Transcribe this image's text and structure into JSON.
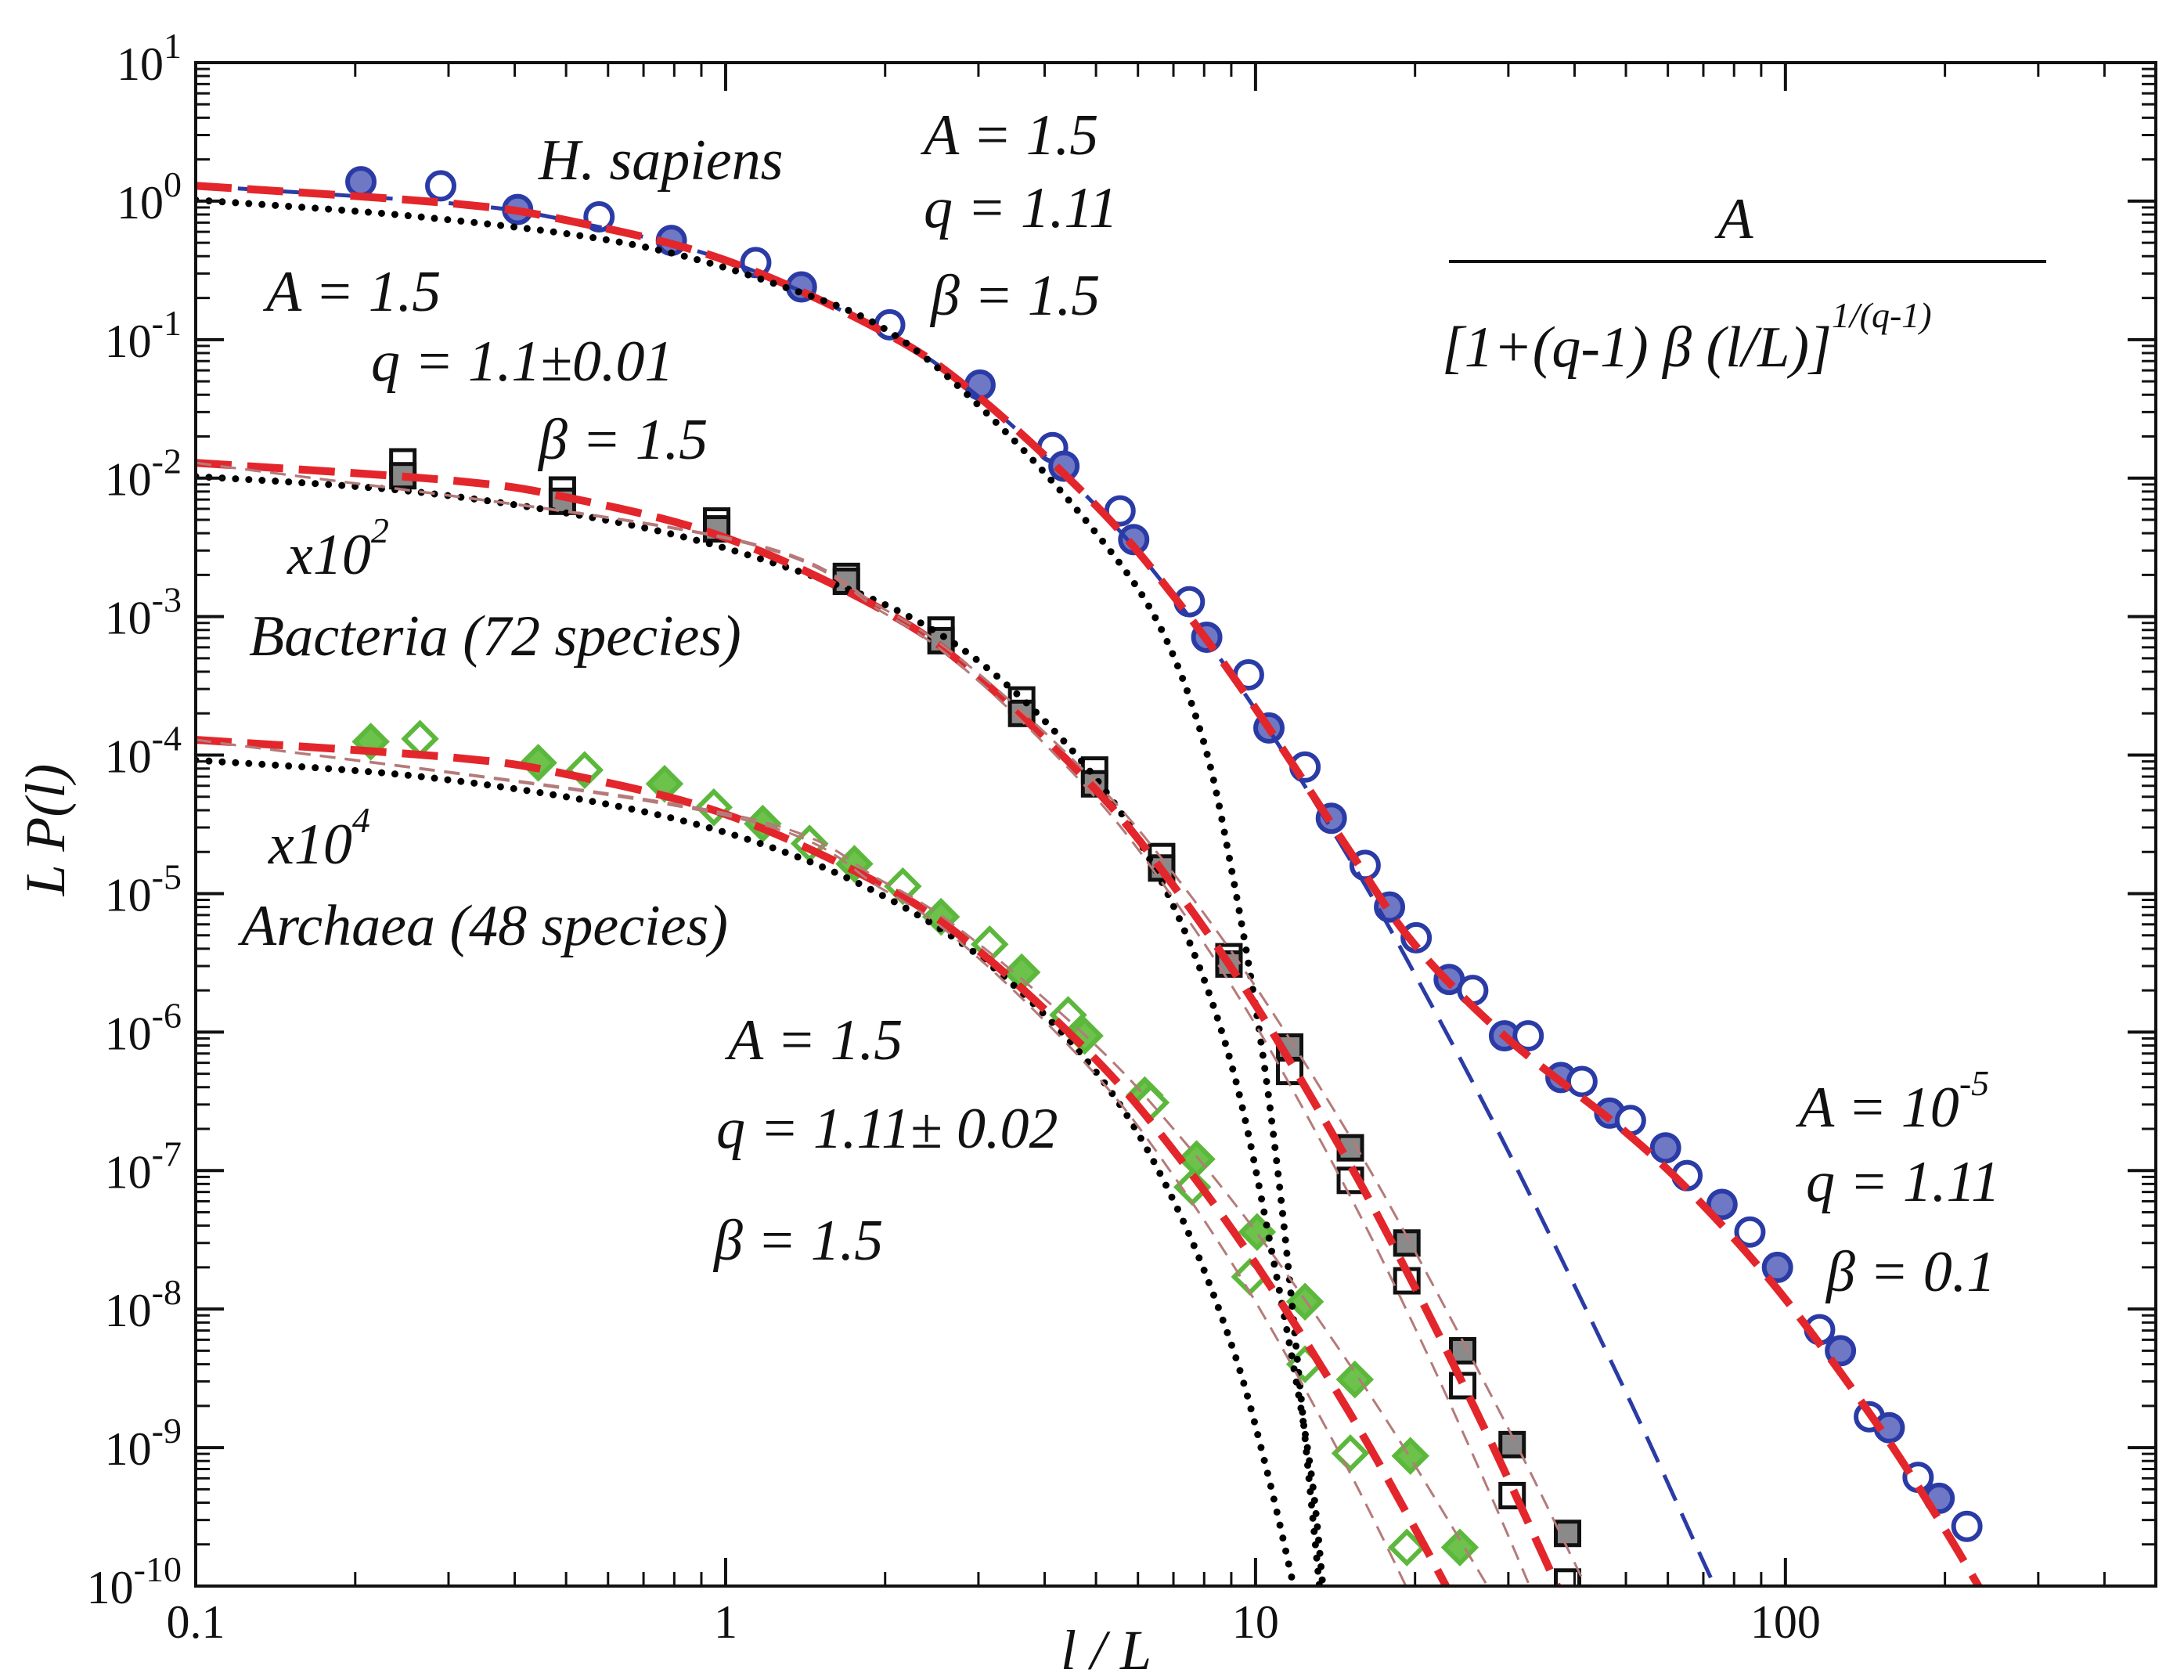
{
  "chart_data": {
    "type": "line",
    "x_label": "l / L",
    "y_label": "L P(l)",
    "xlog": true,
    "ylog": true,
    "xlim": [
      0.1,
      500
    ],
    "ylim": [
      1e-10,
      10
    ],
    "xticks": [
      0.1,
      1,
      10,
      100
    ],
    "yticks": [
      {
        "value": 10,
        "label": "10",
        "exponent": "1"
      },
      {
        "value": 1,
        "label": "10",
        "exponent": "0"
      },
      {
        "value": 0.1,
        "label": "10",
        "exponent": "-1"
      },
      {
        "value": 0.01,
        "label": "10",
        "exponent": "-2"
      },
      {
        "value": 0.001,
        "label": "10",
        "exponent": "-3"
      },
      {
        "value": 0.0001,
        "label": "10",
        "exponent": "-4"
      },
      {
        "value": 1e-05,
        "label": "10",
        "exponent": "-5"
      },
      {
        "value": 1e-06,
        "label": "10",
        "exponent": "-6"
      },
      {
        "value": 1e-07,
        "label": "10",
        "exponent": "-7"
      },
      {
        "value": 1e-08,
        "label": "10",
        "exponent": "-8"
      },
      {
        "value": 1e-09,
        "label": "10",
        "exponent": "-9"
      },
      {
        "value": 1e-10,
        "label": "10",
        "exponent": "-10"
      }
    ],
    "minor_ticks": true,
    "formula": {
      "numerator": "A",
      "denominator": "[1+(q-1) β (l/L)]",
      "exponent": "1/(q-1)"
    },
    "annotations": [
      {
        "text": "A = 1.5"
      },
      {
        "text": "q = 1.11"
      },
      {
        "text": "β = 1.5"
      },
      {
        "text": "A = 1.5"
      },
      {
        "text": "q = 1.1±0.01"
      },
      {
        "text": "β = 1.5"
      },
      {
        "text": "x10",
        "sup": "2"
      },
      {
        "text": "x10",
        "sup": "4"
      },
      {
        "text": "A = 1.5"
      },
      {
        "text": "q = 1.11± 0.02"
      },
      {
        "text": "β = 1.5"
      },
      {
        "text": "A = 10",
        "sup": "-5"
      },
      {
        "text": "q = 1.11"
      },
      {
        "text": "β = 0.1"
      }
    ],
    "series": [
      {
        "name": "H. sapiens",
        "marker": "circle",
        "color": "#2b3ba6",
        "fill": "#6f78c4",
        "filled": [
          true,
          false,
          true,
          false,
          true,
          false,
          true,
          false,
          true,
          false,
          true,
          false,
          true,
          false,
          true,
          false,
          true,
          false,
          true,
          false,
          true,
          false,
          true,
          false,
          true,
          false,
          true,
          false,
          true,
          false,
          true,
          false,
          true,
          false,
          true,
          false,
          true,
          false,
          true,
          false,
          true,
          false
        ],
        "x": [
          0.205,
          0.29,
          0.405,
          0.577,
          0.79,
          1.14,
          1.39,
          2.04,
          3.02,
          4.14,
          4.35,
          5.55,
          5.89,
          7.5,
          8.09,
          9.7,
          10.6,
          12.4,
          13.9,
          16.1,
          17.9,
          20.1,
          23.2,
          25.7,
          29.5,
          32.7,
          37.7,
          41.3,
          46.6,
          51,
          59.4,
          65.2,
          75.9,
          85.7,
          96.6,
          116,
          127,
          144,
          157,
          178,
          195,
          220
        ],
        "values": [
          1.38,
          1.29,
          0.87,
          0.77,
          0.52,
          0.36,
          0.24,
          0.128,
          0.047,
          0.0166,
          0.0122,
          0.0058,
          0.0036,
          0.00128,
          0.00071,
          0.00038,
          0.000157,
          8.2e-05,
          3.5e-05,
          1.6e-05,
          8e-06,
          4.8e-06,
          2.4e-06,
          2e-06,
          9.4e-07,
          9.4e-07,
          4.7e-07,
          4.4e-07,
          2.6e-07,
          2.3e-07,
          1.46e-07,
          9.2e-08,
          5.7e-08,
          3.6e-08,
          2e-08,
          7.1e-09,
          5e-09,
          1.67e-09,
          1.39e-09,
          6.1e-10,
          4.3e-10,
          2.7e-10
        ]
      },
      {
        "name": "Bacteria (72 species)",
        "marker": "square",
        "color": "#111111",
        "fill": "#8a8a8a",
        "filled": [
          false,
          true,
          false,
          true,
          false,
          true,
          false,
          true,
          false,
          true,
          false,
          true,
          false,
          true,
          false,
          true,
          false,
          true,
          true,
          false,
          true,
          false,
          true,
          false,
          true,
          false,
          true,
          false,
          true,
          false
        ],
        "x": [
          0.246,
          0.246,
          0.492,
          0.492,
          0.962,
          0.962,
          1.69,
          1.69,
          2.55,
          2.55,
          3.62,
          3.62,
          4.97,
          4.97,
          6.65,
          6.65,
          8.91,
          8.91,
          11.6,
          11.6,
          15.1,
          15.1,
          19.3,
          19.3,
          24.6,
          24.6,
          30.5,
          30.5,
          38.8,
          38.8
        ],
        "values": [
          0.0131,
          0.0104,
          0.0082,
          0.0068,
          0.0049,
          0.0043,
          0.00195,
          0.0018,
          0.0008,
          0.00067,
          0.00025,
          0.0002,
          7.8e-05,
          6.2e-05,
          1.85e-05,
          1.53e-05,
          3.5e-06,
          3.1e-06,
          7.8e-07,
          5.2e-07,
          1.46e-07,
          8.5e-08,
          3e-08,
          1.6e-08,
          5e-09,
          2.8e-09,
          1.05e-09,
          4.5e-10,
          2.4e-10,
          1.07e-10
        ]
      },
      {
        "name": "Archaea (48 species)",
        "marker": "diamond",
        "color": "#5cb83c",
        "fill": "#6cc24a",
        "filled": [
          true,
          false,
          true,
          false,
          true,
          false,
          true,
          false,
          true,
          false,
          true,
          false,
          true,
          false,
          true,
          true,
          false,
          false,
          true,
          false,
          true,
          true,
          false,
          false,
          true,
          false,
          true,
          true
        ],
        "x": [
          0.214,
          0.265,
          0.443,
          0.542,
          0.767,
          0.95,
          1.175,
          1.44,
          1.75,
          2.16,
          2.55,
          3.15,
          3.62,
          4.43,
          4.76,
          6.18,
          6.34,
          7.6,
          7.74,
          9.76,
          10.07,
          12.4,
          12.4,
          15.1,
          15.4,
          19.3,
          19.6,
          24.3
        ],
        "values": [
          0.000125,
          0.000131,
          8.8e-05,
          7.8e-05,
          6.2e-05,
          4.2e-05,
          3.2e-05,
          2.3e-05,
          1.64e-05,
          1.13e-05,
          6.8e-06,
          4.3e-06,
          2.7e-06,
          1.33e-06,
          9.4e-07,
          3.5e-07,
          3.1e-07,
          7.6e-08,
          1.21e-07,
          1.71e-08,
          3.6e-08,
          1.13e-08,
          4e-09,
          9.1e-10,
          3.1e-09,
          1.9e-10,
          8.7e-10,
          1.9e-10
        ]
      },
      {
        "line": "dashed",
        "color": "#2b3ba6",
        "x": [
          0.1,
          0.3,
          0.5,
          1,
          2,
          3,
          5,
          7,
          10,
          15,
          20,
          30,
          50,
          70,
          75
        ],
        "values": [
          1.29,
          0.967,
          0.729,
          0.374,
          0.112,
          0.0388,
          0.00633,
          0.0014,
          0.000213,
          1.82e-05,
          2.6e-06,
          1.37e-07,
          2.5e-09,
          1.5e-10,
          8.6e-11
        ]
      },
      {
        "line": "thick-dashed",
        "color": "#e3262b",
        "x": [
          0.1,
          0.3,
          0.5,
          1,
          2,
          3,
          5,
          7,
          10,
          15,
          20,
          30,
          50,
          70,
          100,
          150,
          200,
          250
        ],
        "values": [
          1.29,
          0.967,
          0.729,
          0.374,
          0.112,
          0.0388,
          0.00634,
          0.00141,
          0.000217,
          2.07e-05,
          4.24e-06,
          8.87e-07,
          1.89e-07,
          5.6e-08,
          1.18e-08,
          1.42e-09,
          2.56e-10,
          6e-11
        ]
      },
      {
        "line": "dotted",
        "color": "#000000",
        "x": [
          0.1,
          0.265,
          0.66,
          1.29,
          2.09,
          3.4,
          5.21,
          6.65,
          7.98,
          9.0,
          10.2,
          11.2,
          12.2,
          13.2
        ],
        "values": [
          1.02,
          0.77,
          0.49,
          0.24,
          0.107,
          0.021,
          0.0033,
          0.0008,
          0.000125,
          1.53e-05,
          9.4e-07,
          5.7e-08,
          2.2e-09,
          1e-10
        ]
      },
      {
        "line": "dotted",
        "color": "#000000",
        "x": [
          0.1,
          0.265,
          0.66,
          1.29,
          2.22,
          3.4,
          5.21,
          7.06,
          9.0,
          10.8,
          12.6,
          13.4
        ],
        "values": [
          0.0103,
          0.0079,
          0.0046,
          0.0023,
          0.001,
          0.00032,
          5.5e-05,
          7.6e-06,
          5.9e-07,
          2.3e-08,
          8.7e-10,
          1e-10
        ]
      },
      {
        "line": "dotted",
        "color": "#000000",
        "x": [
          0.1,
          0.265,
          0.66,
          1.29,
          2.22,
          3.4,
          5.21,
          7.06,
          9.0,
          10.5,
          11.8
        ],
        "values": [
          9.2e-05,
          7e-05,
          4.1e-05,
          2e-05,
          7.6e-06,
          2.4e-06,
          4.2e-07,
          5.7e-08,
          5.6e-09,
          6.9e-10,
          1e-10
        ]
      },
      {
        "line": "thick-dashed",
        "color": "#e3262b",
        "x": [
          0.1,
          0.3,
          0.5,
          1,
          2,
          3,
          5,
          7,
          10,
          15,
          20,
          25,
          30,
          40
        ],
        "values": [
          0.0129,
          0.00966,
          0.00728,
          0.00371,
          0.00109,
          0.000365,
          5.6e-05,
          1.14e-05,
          1.57e-06,
          1.14e-07,
          1.43e-08,
          2.56e-09,
          5.9e-10,
          5.3e-11
        ]
      },
      {
        "line": "thin-dashed",
        "color": "#b57a7a",
        "x": [
          0.1,
          1,
          2,
          3,
          5,
          7,
          10,
          15,
          20,
          30,
          40,
          45
        ],
        "values": [
          0.0129,
          0.00374,
          0.00112,
          0.000388,
          6.33e-05,
          1.4e-05,
          2.13e-06,
          1.82e-07,
          2.6e-08,
          1.37e-09,
          1.47e-10,
          5.8e-11
        ]
      },
      {
        "line": "thin-dashed",
        "color": "#b57a7a",
        "x": [
          0.1,
          1,
          2,
          3,
          5,
          7,
          10,
          15,
          20,
          25,
          30,
          35
        ],
        "values": [
          0.0129,
          0.00367,
          0.00105,
          0.000343,
          4.9e-05,
          9.2e-06,
          1.13e-06,
          6.8e-08,
          7.3e-09,
          1.13e-09,
          2.3e-10,
          5.7e-11
        ]
      },
      {
        "line": "thick-dashed",
        "color": "#e3262b",
        "x": [
          0.1,
          0.3,
          0.5,
          1,
          2,
          3,
          5,
          7,
          10,
          15,
          20,
          25
        ],
        "values": [
          0.000129,
          9.67e-05,
          7.29e-05,
          3.74e-05,
          1.12e-05,
          3.88e-06,
          6.33e-07,
          1.4e-07,
          2.13e-08,
          1.82e-09,
          2.6e-10,
          5.3e-11
        ]
      },
      {
        "line": "thin-dashed",
        "color": "#b57a7a",
        "x": [
          0.1,
          1,
          2,
          3,
          5,
          7,
          10,
          15,
          20,
          30
        ],
        "values": [
          0.000129,
          3.81e-05,
          1.2e-05,
          4.35e-06,
          8e-07,
          2e-07,
          3.66e-08,
          4.05e-09,
          7.4e-10,
          5.6e-11
        ]
      },
      {
        "line": "thin-dashed",
        "color": "#b57a7a",
        "x": [
          0.1,
          1,
          2,
          3,
          5,
          7,
          10,
          15,
          20
        ],
        "values": [
          0.000129,
          3.67e-05,
          1.05e-05,
          3.43e-06,
          4.9e-07,
          9.2e-08,
          1.13e-08,
          6.8e-10,
          7.3e-11
        ]
      }
    ]
  }
}
